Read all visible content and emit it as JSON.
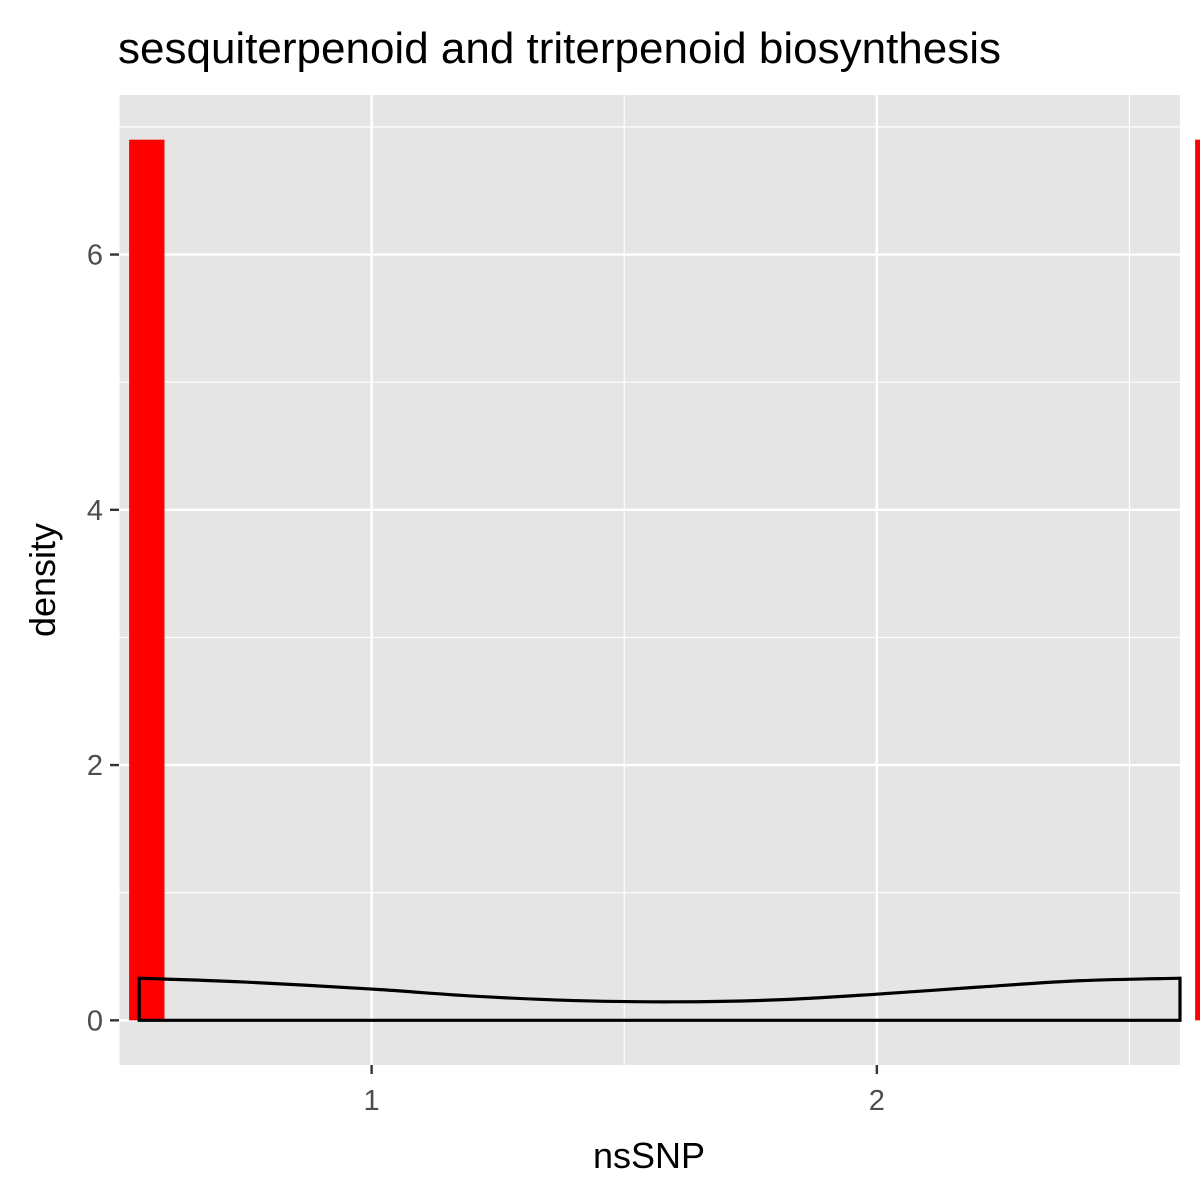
{
  "chart_data": {
    "type": "histogram",
    "title": "sesquiterpenoid and triterpenoid biosynthesis",
    "xlabel": "nsSNP",
    "ylabel": "density",
    "xlim": [
      0.5,
      2.6
    ],
    "ylim": [
      -0.35,
      7.25
    ],
    "x_ticks": [
      1,
      2
    ],
    "y_ticks": [
      0,
      2,
      4,
      6
    ],
    "grid": true,
    "bars": [
      {
        "x_start": 0.52,
        "x_end": 0.59,
        "density": 6.9
      },
      {
        "x_start": 2.63,
        "x_end": 2.7,
        "density": 6.9
      }
    ],
    "density_curve": {
      "x": [
        0.54,
        0.75,
        1.0,
        1.2,
        1.4,
        1.6,
        1.8,
        2.0,
        2.2,
        2.4,
        2.6
      ],
      "y": [
        0.33,
        0.3,
        0.245,
        0.19,
        0.155,
        0.145,
        0.16,
        0.205,
        0.26,
        0.31,
        0.33
      ]
    },
    "colors": {
      "bar_fill": "#ff0000",
      "curve": "#000000",
      "panel": "#e5e5e5",
      "grid": "#ffffff"
    }
  }
}
